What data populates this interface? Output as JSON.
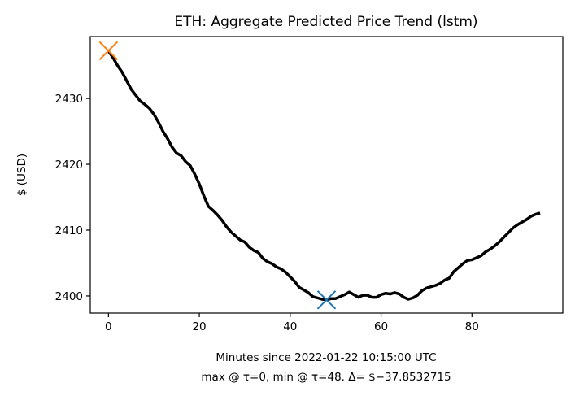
{
  "chart_data": {
    "type": "line",
    "title": "ETH: Aggregate Predicted Price Trend (lstm)",
    "xlabel": "Minutes since 2022-01-22 10:15:00 UTC",
    "xlabel_line2": "max @ τ=0, min @ τ=48. Δ= $−37.8532715",
    "ylabel": "$ (USD)",
    "xlim": [
      -4,
      100
    ],
    "ylim": [
      2397.4,
      2439.4
    ],
    "xticks": [
      0,
      20,
      40,
      60,
      80
    ],
    "yticks": [
      2400,
      2410,
      2420,
      2430
    ],
    "grid": false,
    "series": [
      {
        "color": "#000000",
        "x": [
          0,
          1,
          2,
          3,
          4,
          5,
          6,
          7,
          8,
          9,
          10,
          11,
          12,
          13,
          14,
          15,
          16,
          17,
          18,
          19,
          20,
          21,
          22,
          23,
          24,
          25,
          26,
          27,
          28,
          29,
          30,
          31,
          32,
          33,
          34,
          35,
          36,
          37,
          38,
          39,
          40,
          41,
          42,
          43,
          44,
          45,
          46,
          47,
          48,
          49,
          50,
          51,
          52,
          53,
          54,
          55,
          56,
          57,
          58,
          59,
          60,
          61,
          62,
          63,
          64,
          65,
          66,
          67,
          68,
          69,
          70,
          71,
          72,
          73,
          74,
          75,
          76,
          77,
          78,
          79,
          80,
          81,
          82,
          83,
          84,
          85,
          86,
          87,
          88,
          89,
          90,
          91,
          92,
          93,
          94,
          95
        ],
        "y": [
          2437.2,
          2436.2,
          2435.0,
          2434.0,
          2432.7,
          2431.4,
          2430.5,
          2429.6,
          2429.1,
          2428.5,
          2427.6,
          2426.4,
          2425.0,
          2423.9,
          2422.6,
          2421.7,
          2421.3,
          2420.4,
          2419.8,
          2418.5,
          2417.0,
          2415.2,
          2413.6,
          2413.0,
          2412.3,
          2411.5,
          2410.5,
          2409.7,
          2409.1,
          2408.5,
          2408.2,
          2407.4,
          2406.9,
          2406.6,
          2405.7,
          2405.2,
          2404.9,
          2404.4,
          2404.1,
          2403.6,
          2402.9,
          2402.2,
          2401.3,
          2400.9,
          2400.5,
          2399.9,
          2399.7,
          2399.5,
          2399.4,
          2399.6,
          2399.6,
          2399.9,
          2400.2,
          2400.6,
          2400.2,
          2399.8,
          2400.1,
          2400.1,
          2399.8,
          2399.8,
          2400.2,
          2400.4,
          2400.3,
          2400.5,
          2400.3,
          2399.8,
          2399.5,
          2399.7,
          2400.1,
          2400.8,
          2401.2,
          2401.4,
          2401.6,
          2401.9,
          2402.4,
          2402.7,
          2403.7,
          2404.3,
          2404.9,
          2405.4,
          2405.5,
          2405.8,
          2406.1,
          2406.7,
          2407.1,
          2407.6,
          2408.2,
          2408.9,
          2409.6,
          2410.3,
          2410.8,
          2411.2,
          2411.6,
          2412.1,
          2412.4,
          2412.6
        ]
      }
    ],
    "markers": [
      {
        "type": "max",
        "x": 0,
        "y": 2437.25,
        "color": "#ff7f0e"
      },
      {
        "type": "min",
        "x": 48,
        "y": 2399.4,
        "color": "#1f77b4"
      }
    ]
  }
}
